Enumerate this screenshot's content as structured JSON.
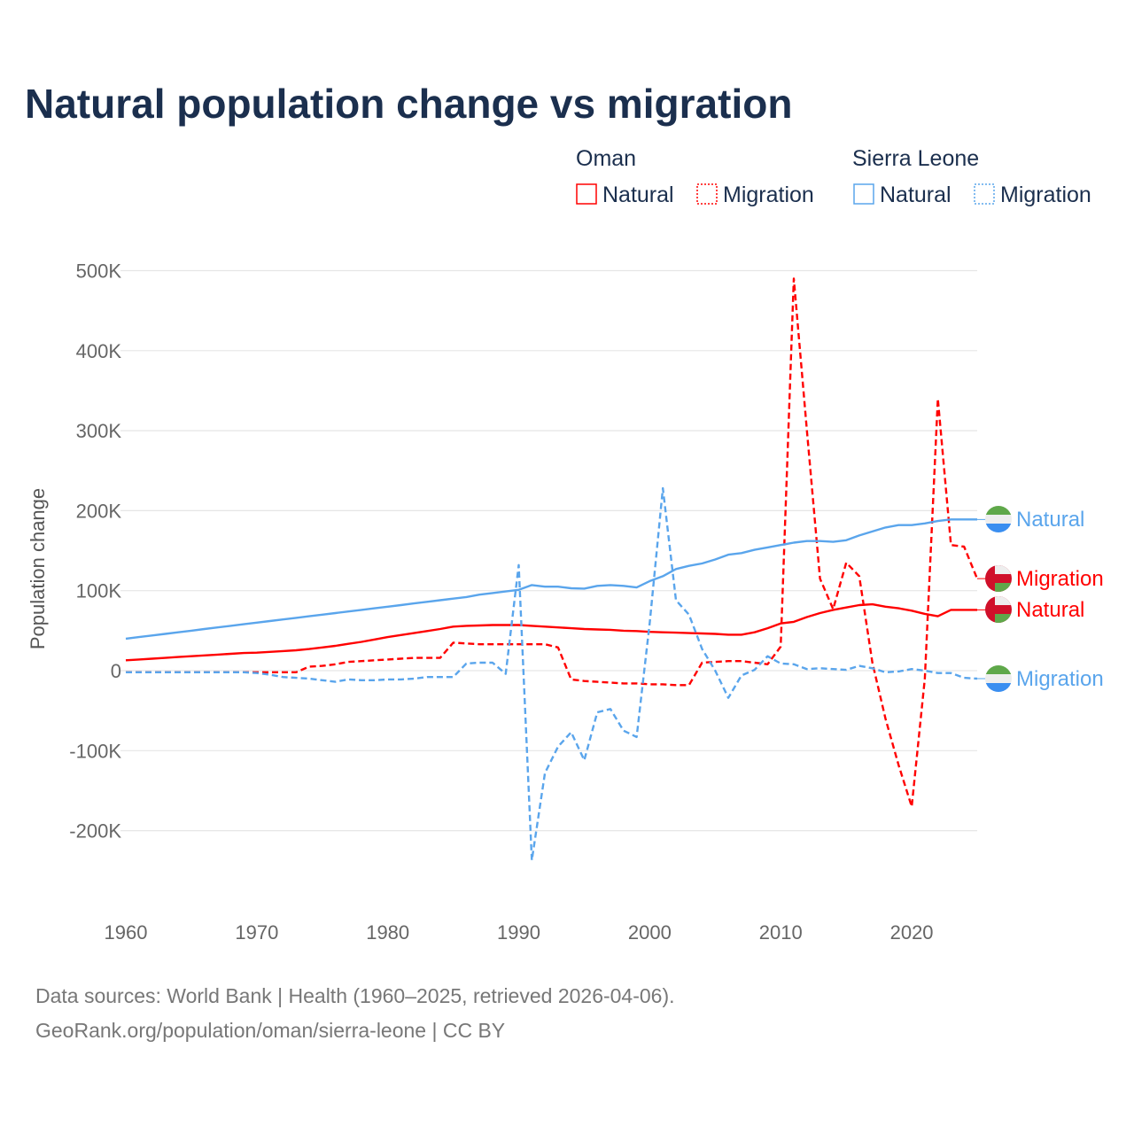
{
  "chart_data": {
    "type": "line",
    "title": "Natural population change vs migration",
    "xlabel": "",
    "ylabel": "Population change",
    "xlim": [
      1960,
      2025
    ],
    "ylim": [
      -250000,
      500000
    ],
    "x_ticks": [
      "1960",
      "1970",
      "1980",
      "1990",
      "2000",
      "2010",
      "2020"
    ],
    "y_ticks": [
      {
        "value": 500000,
        "label": "500K"
      },
      {
        "value": 400000,
        "label": "400K"
      },
      {
        "value": 300000,
        "label": "300K"
      },
      {
        "value": 200000,
        "label": "200K"
      },
      {
        "value": 100000,
        "label": "100K"
      },
      {
        "value": 0,
        "label": "0"
      },
      {
        "value": -100000,
        "label": "-100K"
      },
      {
        "value": -200000,
        "label": "-200K"
      }
    ],
    "grid": true,
    "legend": {
      "placement": "top-right",
      "groups": [
        {
          "country": "Oman",
          "items": [
            "Natural",
            "Migration"
          ]
        },
        {
          "country": "Sierra Leone",
          "items": [
            "Natural",
            "Migration"
          ]
        }
      ]
    },
    "x": [
      1960,
      1961,
      1962,
      1963,
      1964,
      1965,
      1966,
      1967,
      1968,
      1969,
      1970,
      1971,
      1972,
      1973,
      1974,
      1975,
      1976,
      1977,
      1978,
      1979,
      1980,
      1981,
      1982,
      1983,
      1984,
      1985,
      1986,
      1987,
      1988,
      1989,
      1990,
      1991,
      1992,
      1993,
      1994,
      1995,
      1996,
      1997,
      1998,
      1999,
      2000,
      2001,
      2002,
      2003,
      2004,
      2005,
      2006,
      2007,
      2008,
      2009,
      2010,
      2011,
      2012,
      2013,
      2014,
      2015,
      2016,
      2017,
      2018,
      2019,
      2020,
      2021,
      2022,
      2023,
      2024,
      2025
    ],
    "series": [
      {
        "name": "Oman Natural",
        "country": "Oman",
        "kind": "Natural",
        "color": "#ff0000",
        "dash": false,
        "end_label": "Natural",
        "values": [
          13000,
          14000,
          15000,
          16000,
          17000,
          18000,
          19000,
          20000,
          21000,
          22000,
          22500,
          23500,
          24500,
          25500,
          27000,
          29000,
          31000,
          33500,
          36000,
          39000,
          42000,
          44500,
          47000,
          49500,
          52000,
          55000,
          56000,
          56500,
          57000,
          57000,
          57000,
          56000,
          55000,
          54000,
          53000,
          52000,
          51500,
          51000,
          50000,
          49500,
          48500,
          48000,
          47500,
          47000,
          46500,
          46000,
          45000,
          45000,
          48000,
          53000,
          59000,
          61000,
          67000,
          72000,
          76000,
          79000,
          82000,
          83000,
          80000,
          78000,
          75000,
          71000,
          68000,
          76000,
          76000,
          76000
        ]
      },
      {
        "name": "Oman Migration",
        "country": "Oman",
        "kind": "Migration",
        "color": "#ff0000",
        "dash": true,
        "end_label": "Migration",
        "values": [
          -2000,
          -2000,
          -2000,
          -2000,
          -2000,
          -2000,
          -2000,
          -2000,
          -2000,
          -2000,
          -2000,
          -2000,
          -2000,
          -2000,
          5000,
          6000,
          8000,
          11000,
          12000,
          13000,
          14000,
          15000,
          16000,
          16000,
          16000,
          35000,
          34000,
          33000,
          33000,
          33000,
          33000,
          33000,
          33000,
          29000,
          -11000,
          -13000,
          -14000,
          -15000,
          -16000,
          -16000,
          -17000,
          -17000,
          -18000,
          -18000,
          10000,
          11000,
          12000,
          12000,
          10000,
          8000,
          30000,
          490000,
          300000,
          115000,
          77000,
          135000,
          118000,
          10000,
          -60000,
          -118000,
          -170000,
          -10000,
          340000,
          157000,
          155000,
          115000
        ]
      },
      {
        "name": "Sierra Leone Natural",
        "country": "Sierra Leone",
        "kind": "Natural",
        "color": "#5aa5ec",
        "dash": false,
        "end_label": "Natural",
        "values": [
          40000,
          42000,
          44000,
          46000,
          48000,
          50000,
          52000,
          54000,
          56000,
          58000,
          60000,
          62000,
          64000,
          66000,
          68000,
          70000,
          72000,
          74000,
          76000,
          78000,
          80000,
          82000,
          84000,
          86000,
          88000,
          90000,
          92000,
          95000,
          97000,
          99000,
          101000,
          107000,
          105000,
          105000,
          103000,
          102500,
          106000,
          107000,
          106000,
          104000,
          112000,
          118000,
          127000,
          131000,
          134000,
          139000,
          145000,
          147000,
          151000,
          154000,
          157000,
          160000,
          162000,
          162000,
          161000,
          163000,
          169000,
          174000,
          179000,
          182000,
          182000,
          184000,
          187000,
          189000,
          189000,
          189000
        ]
      },
      {
        "name": "Sierra Leone Migration",
        "country": "Sierra Leone",
        "kind": "Migration",
        "color": "#5aa5ec",
        "dash": true,
        "end_label": "Migration",
        "values": [
          -2000,
          -2000,
          -2000,
          -2000,
          -2000,
          -2000,
          -2000,
          -2000,
          -2000,
          -2000,
          -3000,
          -5000,
          -8000,
          -9000,
          -10000,
          -12000,
          -14000,
          -11000,
          -12000,
          -12000,
          -11000,
          -11000,
          -10000,
          -8000,
          -8000,
          -8000,
          9000,
          10000,
          10000,
          -4000,
          132000,
          -237000,
          -128000,
          -95000,
          -77000,
          -112000,
          -52000,
          -48000,
          -75000,
          -83000,
          60000,
          228000,
          88000,
          70000,
          27000,
          0,
          -34000,
          -6000,
          1000,
          18000,
          9000,
          8000,
          2000,
          3000,
          2000,
          1000,
          6000,
          3000,
          -2000,
          -1000,
          2000,
          0,
          -3000,
          -3000,
          -9000,
          -10000
        ]
      }
    ]
  },
  "footer": {
    "line1": "Data sources: World Bank | Health (1960–2025, retrieved 2026-04-06).",
    "line2": "GeoRank.org/population/oman/sierra-leone | CC BY"
  }
}
